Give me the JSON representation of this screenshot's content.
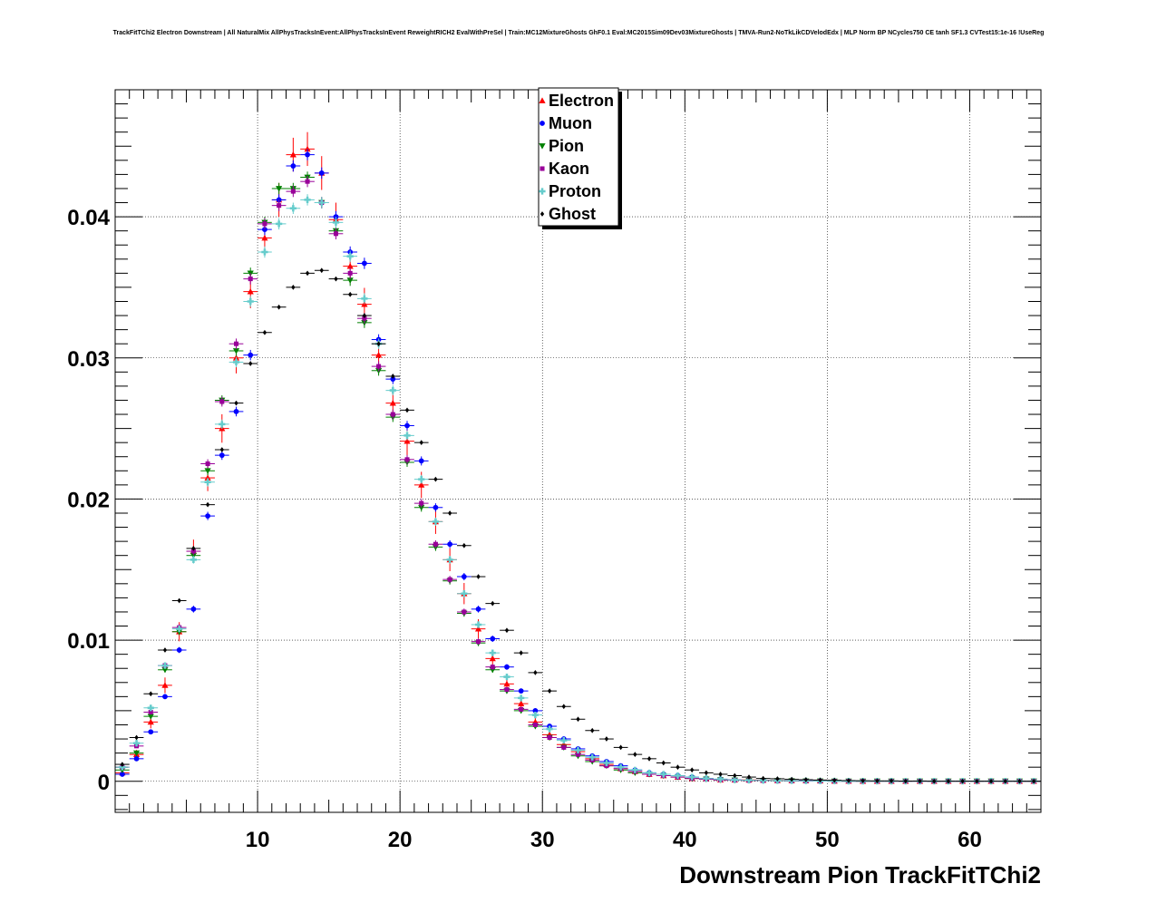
{
  "chart_data": {
    "type": "scatter",
    "title": "TrackFitTChi2 Electron Downstream | All NaturalMix AllPhysTracksInEvent:AllPhysTracksInEvent ReweightRICH2 EvalWithPreSel | Train:MC12MixtureGhosts GhF0.1 Eval:MC2015Sim09Dev03MixtureGhosts | TMVA-Run2-NoTkLikCDVelodEdx | MLP Norm BP NCycles750 CE tanh SF1.3 CVTest15:1e-16 !UseReg",
    "xlabel": "Downstream Pion TrackFitTChi2",
    "ylabel": "",
    "xlim": [
      0,
      65
    ],
    "ylim": [
      -0.0022,
      0.049
    ],
    "xticks": [
      10,
      20,
      30,
      40,
      50,
      60
    ],
    "yticks": [
      0,
      0.01,
      0.02,
      0.03,
      0.04
    ],
    "ytick_labels": [
      "0",
      "0.01",
      "0.02",
      "0.03",
      "0.04"
    ],
    "grid": true,
    "legend_position": "top-center",
    "x": [
      0.5,
      1.5,
      2.5,
      3.5,
      4.5,
      5.5,
      6.5,
      7.5,
      8.5,
      9.5,
      10.5,
      11.5,
      12.5,
      13.5,
      14.5,
      15.5,
      16.5,
      17.5,
      18.5,
      19.5,
      20.5,
      21.5,
      22.5,
      23.5,
      24.5,
      25.5,
      26.5,
      27.5,
      28.5,
      29.5,
      30.5,
      31.5,
      32.5,
      33.5,
      34.5,
      35.5,
      36.5,
      37.5,
      38.5,
      39.5,
      40.5,
      41.5,
      42.5,
      43.5,
      44.5,
      45.5,
      46.5,
      47.5,
      48.5,
      49.5,
      50.5,
      51.5,
      52.5,
      53.5,
      54.5,
      55.5,
      56.5,
      57.5,
      58.5,
      59.5,
      60.5,
      61.5,
      62.5,
      63.5,
      64.5
    ],
    "series": [
      {
        "name": "Electron",
        "marker": "triangle-up",
        "color": "#ff0000",
        "err": 0.0012,
        "values": [
          0.0006,
          0.0019,
          0.0042,
          0.0068,
          0.0106,
          0.0163,
          0.0215,
          0.025,
          0.03,
          0.0347,
          0.0385,
          0.0412,
          0.0444,
          0.0448,
          0.0431,
          0.0398,
          0.0365,
          0.0338,
          0.0302,
          0.0268,
          0.0241,
          0.021,
          0.0184,
          0.0157,
          0.0133,
          0.0108,
          0.0087,
          0.0069,
          0.0055,
          0.0042,
          0.0033,
          0.0026,
          0.0021,
          0.0016,
          0.0012,
          0.0009,
          0.0007,
          0.0005,
          0.0004,
          0.0003,
          0.0002,
          0.0002,
          0.0001,
          0.0001,
          0.0001,
          8e-05,
          6e-05,
          5e-05,
          4e-05,
          3e-05,
          2e-05,
          2e-05,
          1e-05,
          1e-05,
          1e-05,
          1e-05,
          1e-05,
          1e-05,
          1e-05,
          1e-05,
          1e-05,
          1e-05,
          1e-05,
          1e-05,
          1e-05
        ]
      },
      {
        "name": "Muon",
        "marker": "circle",
        "color": "#0000ff",
        "err": 0.0004,
        "values": [
          0.0005,
          0.0016,
          0.0035,
          0.006,
          0.0093,
          0.0122,
          0.0188,
          0.0231,
          0.0262,
          0.0302,
          0.0391,
          0.0412,
          0.0436,
          0.0444,
          0.0431,
          0.04,
          0.0375,
          0.0367,
          0.0313,
          0.0285,
          0.0252,
          0.0227,
          0.0194,
          0.0168,
          0.0145,
          0.0122,
          0.0101,
          0.0081,
          0.0064,
          0.005,
          0.0039,
          0.003,
          0.0023,
          0.0018,
          0.0014,
          0.0011,
          0.0008,
          0.0006,
          0.0005,
          0.0004,
          0.0003,
          0.0002,
          0.00015,
          0.0001,
          8e-05,
          6e-05,
          5e-05,
          4e-05,
          3e-05,
          2e-05,
          2e-05,
          1e-05,
          1e-05,
          1e-05,
          1e-05,
          1e-05,
          1e-05,
          1e-05,
          1e-05,
          1e-05,
          1e-05,
          1e-05,
          1e-05,
          1e-05,
          1e-05
        ]
      },
      {
        "name": "Pion",
        "marker": "triangle-down",
        "color": "#008000",
        "err": 0.0004,
        "values": [
          0.0008,
          0.002,
          0.0046,
          0.0079,
          0.0106,
          0.016,
          0.022,
          0.027,
          0.0305,
          0.036,
          0.0396,
          0.042,
          0.042,
          0.0428,
          0.041,
          0.039,
          0.0355,
          0.0325,
          0.0291,
          0.0258,
          0.0226,
          0.0194,
          0.0166,
          0.0142,
          0.0119,
          0.0098,
          0.0079,
          0.0064,
          0.005,
          0.0039,
          0.0031,
          0.0024,
          0.0018,
          0.0014,
          0.0011,
          0.0008,
          0.0006,
          0.0005,
          0.0004,
          0.0003,
          0.0002,
          0.00015,
          0.0001,
          8e-05,
          6e-05,
          5e-05,
          4e-05,
          3e-05,
          2e-05,
          2e-05,
          1e-05,
          1e-05,
          1e-05,
          1e-05,
          1e-05,
          1e-05,
          1e-05,
          1e-05,
          1e-05,
          1e-05,
          1e-05,
          1e-05,
          1e-05,
          1e-05,
          1e-05
        ]
      },
      {
        "name": "Kaon",
        "marker": "square",
        "color": "#990099",
        "err": 0.0004,
        "values": [
          0.001,
          0.0025,
          0.0049,
          0.0082,
          0.0109,
          0.0163,
          0.0225,
          0.0269,
          0.031,
          0.0356,
          0.0395,
          0.0408,
          0.0418,
          0.0425,
          0.041,
          0.0388,
          0.036,
          0.0328,
          0.0294,
          0.026,
          0.0228,
          0.0197,
          0.0168,
          0.0143,
          0.012,
          0.0099,
          0.0081,
          0.0065,
          0.0051,
          0.004,
          0.0031,
          0.0024,
          0.0019,
          0.0015,
          0.0011,
          0.0009,
          0.0007,
          0.0005,
          0.0004,
          0.0003,
          0.0002,
          0.00015,
          0.0001,
          8e-05,
          6e-05,
          5e-05,
          4e-05,
          3e-05,
          2e-05,
          2e-05,
          1e-05,
          1e-05,
          1e-05,
          1e-05,
          1e-05,
          1e-05,
          1e-05,
          1e-05,
          1e-05,
          1e-05,
          1e-05,
          1e-05,
          1e-05,
          1e-05,
          1e-05
        ]
      },
      {
        "name": "Proton",
        "marker": "cross",
        "color": "#66cccc",
        "err": 0.0004,
        "values": [
          0.001,
          0.0027,
          0.0052,
          0.0082,
          0.0108,
          0.0157,
          0.0212,
          0.0253,
          0.0297,
          0.034,
          0.0375,
          0.0395,
          0.0406,
          0.0412,
          0.041,
          0.0396,
          0.0372,
          0.0342,
          0.031,
          0.0277,
          0.0245,
          0.0214,
          0.0184,
          0.0157,
          0.0133,
          0.0111,
          0.0091,
          0.0074,
          0.0059,
          0.0047,
          0.0037,
          0.0029,
          0.0022,
          0.0017,
          0.0013,
          0.001,
          0.0008,
          0.0006,
          0.0005,
          0.0004,
          0.0003,
          0.0002,
          0.00015,
          0.0001,
          8e-05,
          6e-05,
          5e-05,
          4e-05,
          3e-05,
          2e-05,
          2e-05,
          1e-05,
          1e-05,
          1e-05,
          1e-05,
          1e-05,
          1e-05,
          1e-05,
          1e-05,
          1e-05,
          1e-05,
          1e-05,
          1e-05,
          1e-05,
          1e-05
        ]
      },
      {
        "name": "Ghost",
        "marker": "diamond",
        "color": "#000000",
        "err": 0.0001,
        "values": [
          0.0012,
          0.0031,
          0.0062,
          0.0093,
          0.0128,
          0.0165,
          0.0196,
          0.0235,
          0.0268,
          0.0296,
          0.0318,
          0.0336,
          0.035,
          0.036,
          0.0362,
          0.0356,
          0.0345,
          0.033,
          0.031,
          0.0287,
          0.0263,
          0.024,
          0.0214,
          0.019,
          0.0167,
          0.0145,
          0.0126,
          0.0107,
          0.0091,
          0.0077,
          0.0064,
          0.0053,
          0.0044,
          0.0036,
          0.003,
          0.0024,
          0.0019,
          0.0016,
          0.0013,
          0.001,
          0.0008,
          0.0006,
          0.0005,
          0.0004,
          0.0003,
          0.0002,
          0.00018,
          0.00014,
          0.00011,
          9e-05,
          7e-05,
          5e-05,
          4e-05,
          3e-05,
          3e-05,
          2e-05,
          2e-05,
          1e-05,
          1e-05,
          1e-05,
          1e-05,
          1e-05,
          1e-05,
          1e-05,
          1e-05
        ]
      }
    ]
  }
}
